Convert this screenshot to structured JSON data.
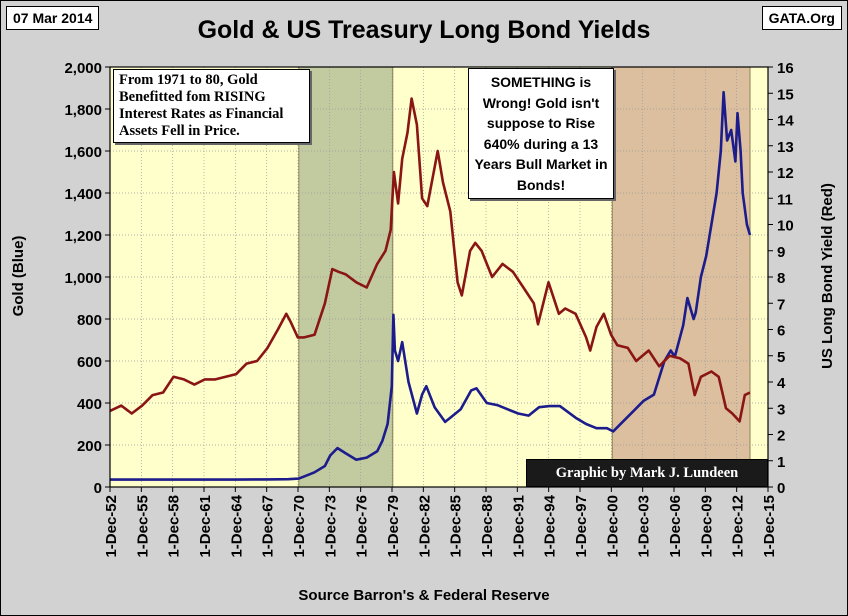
{
  "date_tag": "07 Mar 2014",
  "source_tag": "GATA.Org",
  "left_note": "From 1971 to 80, Gold Benefitted fom RISING Interest Rates as Financial Assets Fell in Price.",
  "right_note": "SOMETHING is Wrong! Gold isn't suppose to Rise 640% during a 13 Years Bull Market in Bonds!",
  "credit": "Graphic by Mark J. Lundeen",
  "colors": {
    "plot_bg": "#ffffcc",
    "green_band": "#c2cba0",
    "brown_band": "#dcbf9e",
    "gold_line": "#1c1c8c",
    "yield_line": "#8a1515",
    "frame_bg": "#d2d2d2"
  },
  "chart_data": {
    "type": "line",
    "title": "Gold & US Treasury Long Bond Yields",
    "xlabel": "Source Barron's & Federal Reserve",
    "ylabel": "Gold  (Blue)",
    "y2label": "US Long Bond Yield  (Red)",
    "xlim": [
      1952.92,
      2015.92
    ],
    "ylim": [
      0,
      2000
    ],
    "y2lim": [
      0,
      16
    ],
    "x_tick_labels": [
      "1-Dec-52",
      "1-Dec-55",
      "1-Dec-58",
      "1-Dec-61",
      "1-Dec-64",
      "1-Dec-67",
      "1-Dec-70",
      "1-Dec-73",
      "1-Dec-76",
      "1-Dec-79",
      "1-Dec-82",
      "1-Dec-85",
      "1-Dec-88",
      "1-Dec-91",
      "1-Dec-94",
      "1-Dec-97",
      "1-Dec-00",
      "1-Dec-03",
      "1-Dec-06",
      "1-Dec-09",
      "1-Dec-12",
      "1-Dec-15"
    ],
    "x_tick_values": [
      1952.92,
      1955.92,
      1958.92,
      1961.92,
      1964.92,
      1967.92,
      1970.92,
      1973.92,
      1976.92,
      1979.92,
      1982.92,
      1985.92,
      1988.92,
      1991.92,
      1994.92,
      1997.92,
      2000.92,
      2003.92,
      2006.92,
      2009.92,
      2012.92,
      2015.92
    ],
    "y_tick_labels": [
      "0",
      "200",
      "400",
      "600",
      "800",
      "1,000",
      "1,200",
      "1,400",
      "1,600",
      "1,800",
      "2,000"
    ],
    "y2_tick_labels": [
      "0",
      "1",
      "2",
      "3",
      "4",
      "5",
      "6",
      "7",
      "8",
      "9",
      "10",
      "11",
      "12",
      "13",
      "14",
      "15",
      "16"
    ],
    "shaded_periods": [
      {
        "from": 1971.0,
        "to": 1980.0,
        "color": "green"
      },
      {
        "from": 2001.0,
        "to": 2014.2,
        "color": "brown"
      }
    ],
    "grid": true,
    "series": [
      {
        "name": "Gold  (Blue)",
        "axis": "left",
        "x": [
          1952.92,
          1960,
          1965,
          1968,
          1970,
          1971,
          1972,
          1972.5,
          1973.5,
          1974,
          1974.7,
          1975.5,
          1976.5,
          1977.5,
          1978.5,
          1979,
          1979.5,
          1979.9,
          1980.05,
          1980.2,
          1980.5,
          1980.9,
          1981.5,
          1982.3,
          1982.8,
          1983.2,
          1984,
          1985,
          1985.5,
          1986.5,
          1987.5,
          1988,
          1989,
          1990,
          1991,
          1992,
          1993,
          1994,
          1995,
          1996,
          1997.5,
          1998.5,
          1999.5,
          2000.5,
          2001.1,
          2002,
          2003,
          2004,
          2005,
          2006,
          2006.6,
          2007,
          2007.8,
          2008.2,
          2008.8,
          2009,
          2009.5,
          2010,
          2010.5,
          2011,
          2011.4,
          2011.67,
          2012,
          2012.4,
          2012.8,
          2013,
          2013.3,
          2013.5,
          2013.9,
          2014.2
        ],
        "values": [
          35,
          35,
          35,
          36,
          37,
          40,
          60,
          70,
          100,
          150,
          185,
          160,
          130,
          140,
          170,
          220,
          300,
          480,
          820,
          650,
          600,
          690,
          500,
          350,
          440,
          480,
          380,
          310,
          330,
          370,
          460,
          470,
          400,
          390,
          370,
          350,
          340,
          380,
          385,
          385,
          330,
          300,
          280,
          280,
          265,
          310,
          360,
          410,
          440,
          600,
          650,
          620,
          770,
          900,
          800,
          830,
          1000,
          1100,
          1250,
          1400,
          1600,
          1880,
          1650,
          1700,
          1550,
          1780,
          1600,
          1400,
          1250,
          1200
        ]
      },
      {
        "name": "US Long Bond Yield  (Red)",
        "axis": "right",
        "x": [
          1952.92,
          1954,
          1955,
          1956,
          1957,
          1958,
          1959,
          1960,
          1961,
          1962,
          1963,
          1964,
          1965,
          1966,
          1967,
          1968,
          1969,
          1969.8,
          1970.2,
          1970.9,
          1971.5,
          1972.5,
          1973.5,
          1974.2,
          1974.8,
          1975.5,
          1976.5,
          1977.5,
          1978.5,
          1979.3,
          1979.8,
          1980.1,
          1980.5,
          1980.9,
          1981.4,
          1981.8,
          1982.3,
          1982.8,
          1983.3,
          1984.3,
          1984.8,
          1985.5,
          1986.2,
          1986.6,
          1987.4,
          1987.9,
          1988.5,
          1989.5,
          1990.5,
          1991.5,
          1992.5,
          1993.5,
          1993.9,
          1994.9,
          1995.9,
          1996.5,
          1997.5,
          1998.5,
          1998.9,
          1999.5,
          2000.2,
          2000.9,
          2001.5,
          2002.5,
          2003.3,
          2004.5,
          2005.5,
          2006.5,
          2007.5,
          2008.3,
          2008.9,
          2009.5,
          2010.5,
          2011.2,
          2011.9,
          2012.5,
          2013.2,
          2013.7,
          2014.2
        ],
        "values": [
          2.9,
          3.1,
          2.8,
          3.1,
          3.5,
          3.6,
          4.2,
          4.1,
          3.9,
          4.1,
          4.1,
          4.2,
          4.3,
          4.7,
          4.8,
          5.3,
          6.0,
          6.6,
          6.3,
          5.7,
          5.7,
          5.8,
          7.0,
          8.3,
          8.2,
          8.1,
          7.8,
          7.6,
          8.5,
          9.0,
          9.8,
          12.0,
          10.8,
          12.5,
          13.5,
          14.8,
          13.8,
          11.0,
          10.7,
          12.8,
          11.6,
          10.5,
          7.8,
          7.3,
          9.0,
          9.3,
          9.0,
          8.0,
          8.5,
          8.2,
          7.6,
          7.0,
          6.2,
          7.8,
          6.6,
          6.8,
          6.6,
          5.7,
          5.2,
          6.1,
          6.6,
          5.8,
          5.4,
          5.3,
          4.8,
          5.2,
          4.6,
          5.0,
          4.9,
          4.7,
          3.5,
          4.2,
          4.4,
          4.2,
          3.0,
          2.8,
          2.5,
          3.5,
          3.6
        ]
      }
    ]
  }
}
